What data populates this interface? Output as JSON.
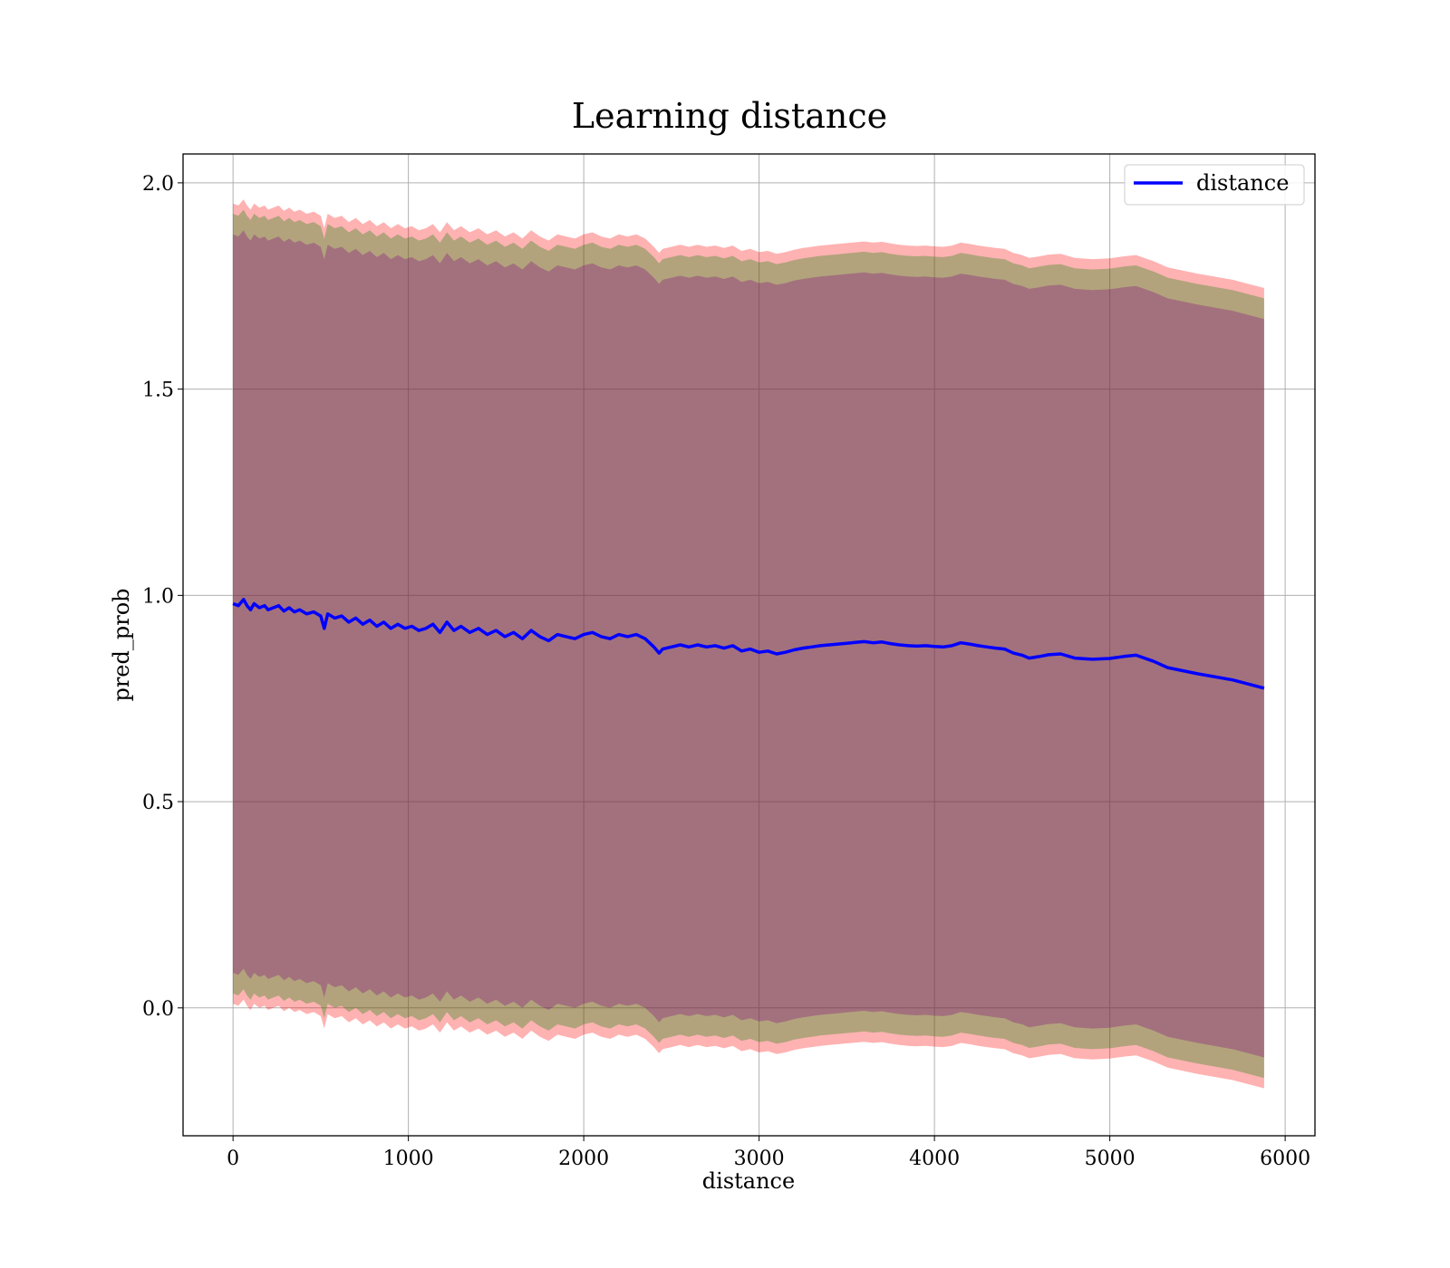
{
  "chart_data": {
    "type": "line",
    "title": "Learning distance",
    "xlabel": "distance",
    "ylabel": "pred_prob",
    "xlim": [
      -285,
      6170
    ],
    "ylim": [
      -0.31,
      2.07
    ],
    "x_ticks": [
      0,
      1000,
      2000,
      3000,
      4000,
      5000,
      6000
    ],
    "x_tick_labels": [
      "0",
      "1000",
      "2000",
      "3000",
      "4000",
      "5000",
      "6000"
    ],
    "y_ticks": [
      0.0,
      0.5,
      1.0,
      1.5,
      2.0
    ],
    "y_tick_labels": [
      "0.0",
      "0.5",
      "1.0",
      "1.5",
      "2.0"
    ],
    "grid": true,
    "legend": {
      "position": "top-right",
      "entries": [
        "distance"
      ]
    },
    "series": [
      {
        "name": "distance",
        "color": "#0000ff",
        "x": [
          0,
          30,
          60,
          80,
          100,
          120,
          150,
          180,
          200,
          230,
          260,
          290,
          320,
          350,
          380,
          420,
          460,
          500,
          520,
          540,
          580,
          620,
          660,
          700,
          740,
          780,
          820,
          860,
          900,
          940,
          980,
          1020,
          1060,
          1100,
          1140,
          1180,
          1220,
          1260,
          1300,
          1350,
          1400,
          1450,
          1500,
          1550,
          1600,
          1650,
          1700,
          1750,
          1800,
          1850,
          1900,
          1950,
          2000,
          2050,
          2100,
          2150,
          2200,
          2250,
          2300,
          2350,
          2400,
          2430,
          2450,
          2500,
          2550,
          2600,
          2650,
          2700,
          2750,
          2800,
          2850,
          2900,
          2950,
          3000,
          3050,
          3100,
          3150,
          3200,
          3250,
          3300,
          3350,
          3400,
          3450,
          3500,
          3550,
          3600,
          3650,
          3700,
          3750,
          3800,
          3850,
          3900,
          3950,
          4000,
          4050,
          4100,
          4150,
          4200,
          4250,
          4300,
          4350,
          4400,
          4450,
          4500,
          4540,
          4600,
          4650,
          4720,
          4800,
          4900,
          5000,
          5080,
          5150,
          5250,
          5330,
          5500,
          5700,
          5880
        ],
        "y": [
          0.98,
          0.975,
          0.99,
          0.975,
          0.965,
          0.98,
          0.97,
          0.975,
          0.965,
          0.97,
          0.975,
          0.962,
          0.97,
          0.96,
          0.965,
          0.955,
          0.96,
          0.95,
          0.92,
          0.955,
          0.945,
          0.95,
          0.935,
          0.945,
          0.93,
          0.94,
          0.925,
          0.935,
          0.92,
          0.93,
          0.92,
          0.925,
          0.915,
          0.92,
          0.93,
          0.91,
          0.935,
          0.915,
          0.925,
          0.91,
          0.92,
          0.905,
          0.915,
          0.9,
          0.91,
          0.895,
          0.915,
          0.9,
          0.89,
          0.905,
          0.9,
          0.895,
          0.905,
          0.91,
          0.9,
          0.895,
          0.905,
          0.9,
          0.905,
          0.895,
          0.875,
          0.86,
          0.87,
          0.875,
          0.88,
          0.875,
          0.88,
          0.875,
          0.878,
          0.872,
          0.878,
          0.865,
          0.87,
          0.862,
          0.865,
          0.858,
          0.862,
          0.868,
          0.872,
          0.875,
          0.878,
          0.88,
          0.882,
          0.884,
          0.886,
          0.888,
          0.885,
          0.887,
          0.883,
          0.88,
          0.878,
          0.877,
          0.878,
          0.876,
          0.875,
          0.878,
          0.885,
          0.882,
          0.878,
          0.875,
          0.872,
          0.87,
          0.86,
          0.855,
          0.848,
          0.852,
          0.856,
          0.858,
          0.848,
          0.845,
          0.847,
          0.852,
          0.855,
          0.84,
          0.825,
          0.81,
          0.795,
          0.775
        ]
      }
    ],
    "bands": [
      {
        "color": "#ff0000",
        "opacity": 0.3,
        "half_width": 0.97
      },
      {
        "color": "#008000",
        "opacity": 0.3,
        "half_width": 0.945
      },
      {
        "color": "#800080",
        "opacity": 0.3,
        "half_width": 0.895
      }
    ]
  }
}
